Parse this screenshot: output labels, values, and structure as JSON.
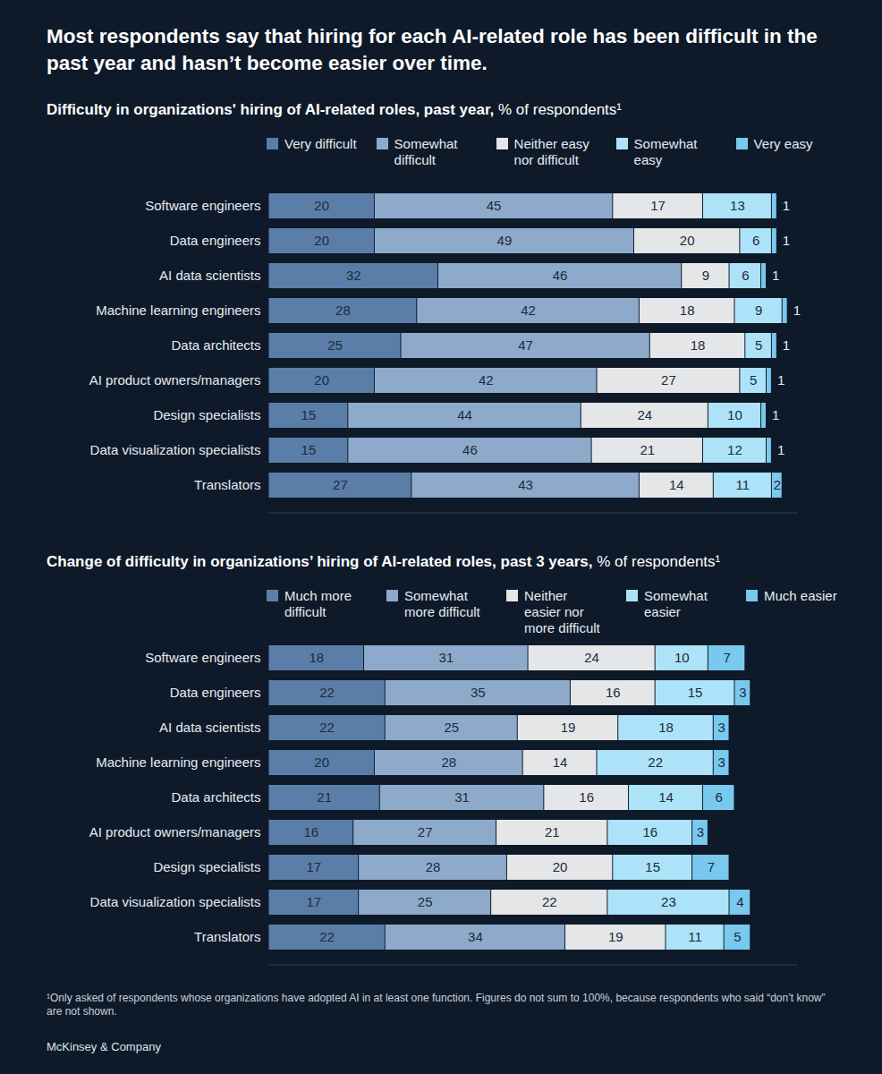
{
  "title": "Most respondents say that hiring for each AI-related role has been difficult in the past year and hasn’t become easier over time.",
  "footnote": "¹Only asked of respondents whose organizations have adopted AI in at least one function. Figures do not sum to 100%, because respondents who said “don’t know” are not shown.",
  "source": "McKinsey & Company",
  "chart_data": [
    {
      "type": "bar",
      "orientation": "horizontal",
      "stacked": true,
      "data_labels": true,
      "tick_labels": "y",
      "title": "Difficulty in organizations' hiring of AI-related roles, past year,",
      "subtitle": "% of respondents¹",
      "xlim": [
        0,
        100
      ],
      "categories": [
        "Software engineers",
        "Data engineers",
        "AI data scientists",
        "Machine learning engineers",
        "Data architects",
        "AI product owners/managers",
        "Design specialists",
        "Data visualization specialists",
        "Translators"
      ],
      "series": [
        {
          "name": "Very difficult",
          "color": "#5b7ea8",
          "values": [
            20,
            20,
            32,
            28,
            25,
            20,
            15,
            15,
            27
          ]
        },
        {
          "name": "Somewhat difficult",
          "color": "#8eaacb",
          "values": [
            45,
            49,
            46,
            42,
            47,
            42,
            44,
            46,
            43
          ]
        },
        {
          "name": "Neither easy nor difficult",
          "color": "#e5e6e8",
          "values": [
            17,
            20,
            9,
            18,
            18,
            27,
            24,
            21,
            14
          ]
        },
        {
          "name": "Somewhat easy",
          "color": "#ace3f8",
          "values": [
            13,
            6,
            6,
            9,
            5,
            5,
            10,
            12,
            11
          ]
        },
        {
          "name": "Very easy",
          "color": "#79c8ee",
          "values": [
            1,
            1,
            1,
            1,
            1,
            1,
            1,
            1,
            2
          ]
        }
      ]
    },
    {
      "type": "bar",
      "orientation": "horizontal",
      "stacked": true,
      "data_labels": true,
      "tick_labels": "y",
      "title": "Change of difficulty in organizations’ hiring of AI-related roles, past 3 years,",
      "subtitle": "% of respondents¹",
      "xlim": [
        0,
        100
      ],
      "categories": [
        "Software engineers",
        "Data engineers",
        "AI data scientists",
        "Machine learning engineers",
        "Data architects",
        "AI product owners/managers",
        "Design specialists",
        "Data visualization specialists",
        "Translators"
      ],
      "series": [
        {
          "name": "Much more difficult",
          "color": "#5b7ea8",
          "values": [
            18,
            22,
            22,
            20,
            21,
            16,
            17,
            17,
            22
          ]
        },
        {
          "name": "Somewhat more difficult",
          "color": "#8eaacb",
          "values": [
            31,
            35,
            25,
            28,
            31,
            27,
            28,
            25,
            34
          ]
        },
        {
          "name": "Neither easier nor more difficult",
          "color": "#e5e6e8",
          "values": [
            24,
            16,
            19,
            14,
            16,
            21,
            20,
            22,
            19
          ]
        },
        {
          "name": "Somewhat easier",
          "color": "#ace3f8",
          "values": [
            10,
            15,
            18,
            22,
            14,
            16,
            15,
            23,
            11
          ]
        },
        {
          "name": "Much easier",
          "color": "#79c8ee",
          "values": [
            7,
            3,
            3,
            3,
            6,
            3,
            7,
            4,
            5
          ]
        }
      ]
    }
  ]
}
